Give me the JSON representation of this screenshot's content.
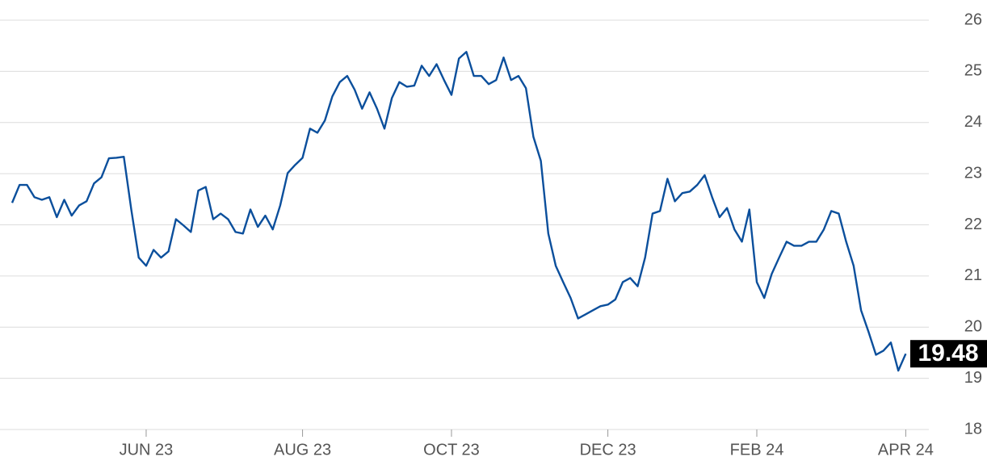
{
  "chart_data": {
    "type": "line",
    "categories": [
      null,
      null,
      null,
      null,
      null,
      null,
      null,
      null,
      null,
      null,
      null,
      null,
      null,
      null,
      null,
      null,
      null,
      null,
      "JUN 23",
      null,
      null,
      null,
      null,
      null,
      null,
      null,
      null,
      null,
      null,
      null,
      null,
      null,
      null,
      null,
      null,
      null,
      null,
      null,
      null,
      "AUG 23",
      null,
      null,
      null,
      null,
      null,
      null,
      null,
      null,
      null,
      null,
      null,
      null,
      null,
      null,
      null,
      null,
      null,
      null,
      null,
      "OCT 23",
      null,
      null,
      null,
      null,
      null,
      null,
      null,
      null,
      null,
      null,
      null,
      null,
      null,
      null,
      null,
      null,
      null,
      null,
      null,
      null,
      "DEC 23",
      null,
      null,
      null,
      null,
      null,
      null,
      null,
      null,
      null,
      null,
      null,
      null,
      null,
      null,
      null,
      null,
      null,
      null,
      null,
      "FEB 24",
      null,
      null,
      null,
      null,
      null,
      null,
      null,
      null,
      null,
      null,
      null,
      null,
      null,
      null,
      null,
      null,
      null,
      null,
      null,
      "APR 24"
    ],
    "series": [
      {
        "color": "#0b4f9c",
        "values": [
          22.43,
          22.78,
          22.78,
          22.54,
          22.49,
          22.54,
          22.15,
          22.49,
          22.18,
          22.38,
          22.46,
          22.81,
          22.93,
          23.3,
          23.31,
          23.33,
          22.3,
          21.36,
          21.2,
          21.51,
          21.36,
          21.48,
          22.11,
          21.99,
          21.86,
          22.67,
          22.74,
          22.11,
          22.22,
          22.11,
          21.86,
          21.83,
          22.3,
          21.96,
          22.18,
          21.91,
          22.38,
          23.01,
          23.17,
          23.31,
          23.88,
          23.8,
          24.04,
          24.51,
          24.79,
          24.91,
          24.64,
          24.27,
          24.59,
          24.27,
          23.88,
          24.48,
          24.79,
          24.7,
          24.72,
          25.11,
          24.91,
          25.14,
          24.83,
          24.54,
          25.25,
          25.38,
          24.91,
          24.91,
          24.75,
          24.83,
          25.27,
          24.83,
          24.91,
          24.67,
          23.72,
          23.25,
          21.83,
          21.2,
          20.88,
          20.57,
          20.17,
          20.25,
          20.33,
          20.41,
          20.44,
          20.54,
          20.88,
          20.96,
          20.8,
          21.36,
          22.22,
          22.27,
          22.9,
          22.46,
          22.62,
          22.65,
          22.78,
          22.97,
          22.54,
          22.15,
          22.33,
          21.91,
          21.67,
          22.3,
          20.88,
          20.57,
          21.04,
          21.36,
          21.67,
          21.59,
          21.59,
          21.67,
          21.67,
          21.91,
          22.27,
          22.22,
          21.67,
          21.2,
          20.33,
          19.91,
          19.46,
          19.54,
          19.7,
          19.15,
          19.48
        ]
      }
    ],
    "ylim": [
      18,
      26
    ],
    "yticks": [
      18,
      19,
      20,
      21,
      22,
      23,
      24,
      25,
      26
    ],
    "grid": true,
    "axis_side": "right"
  }
}
